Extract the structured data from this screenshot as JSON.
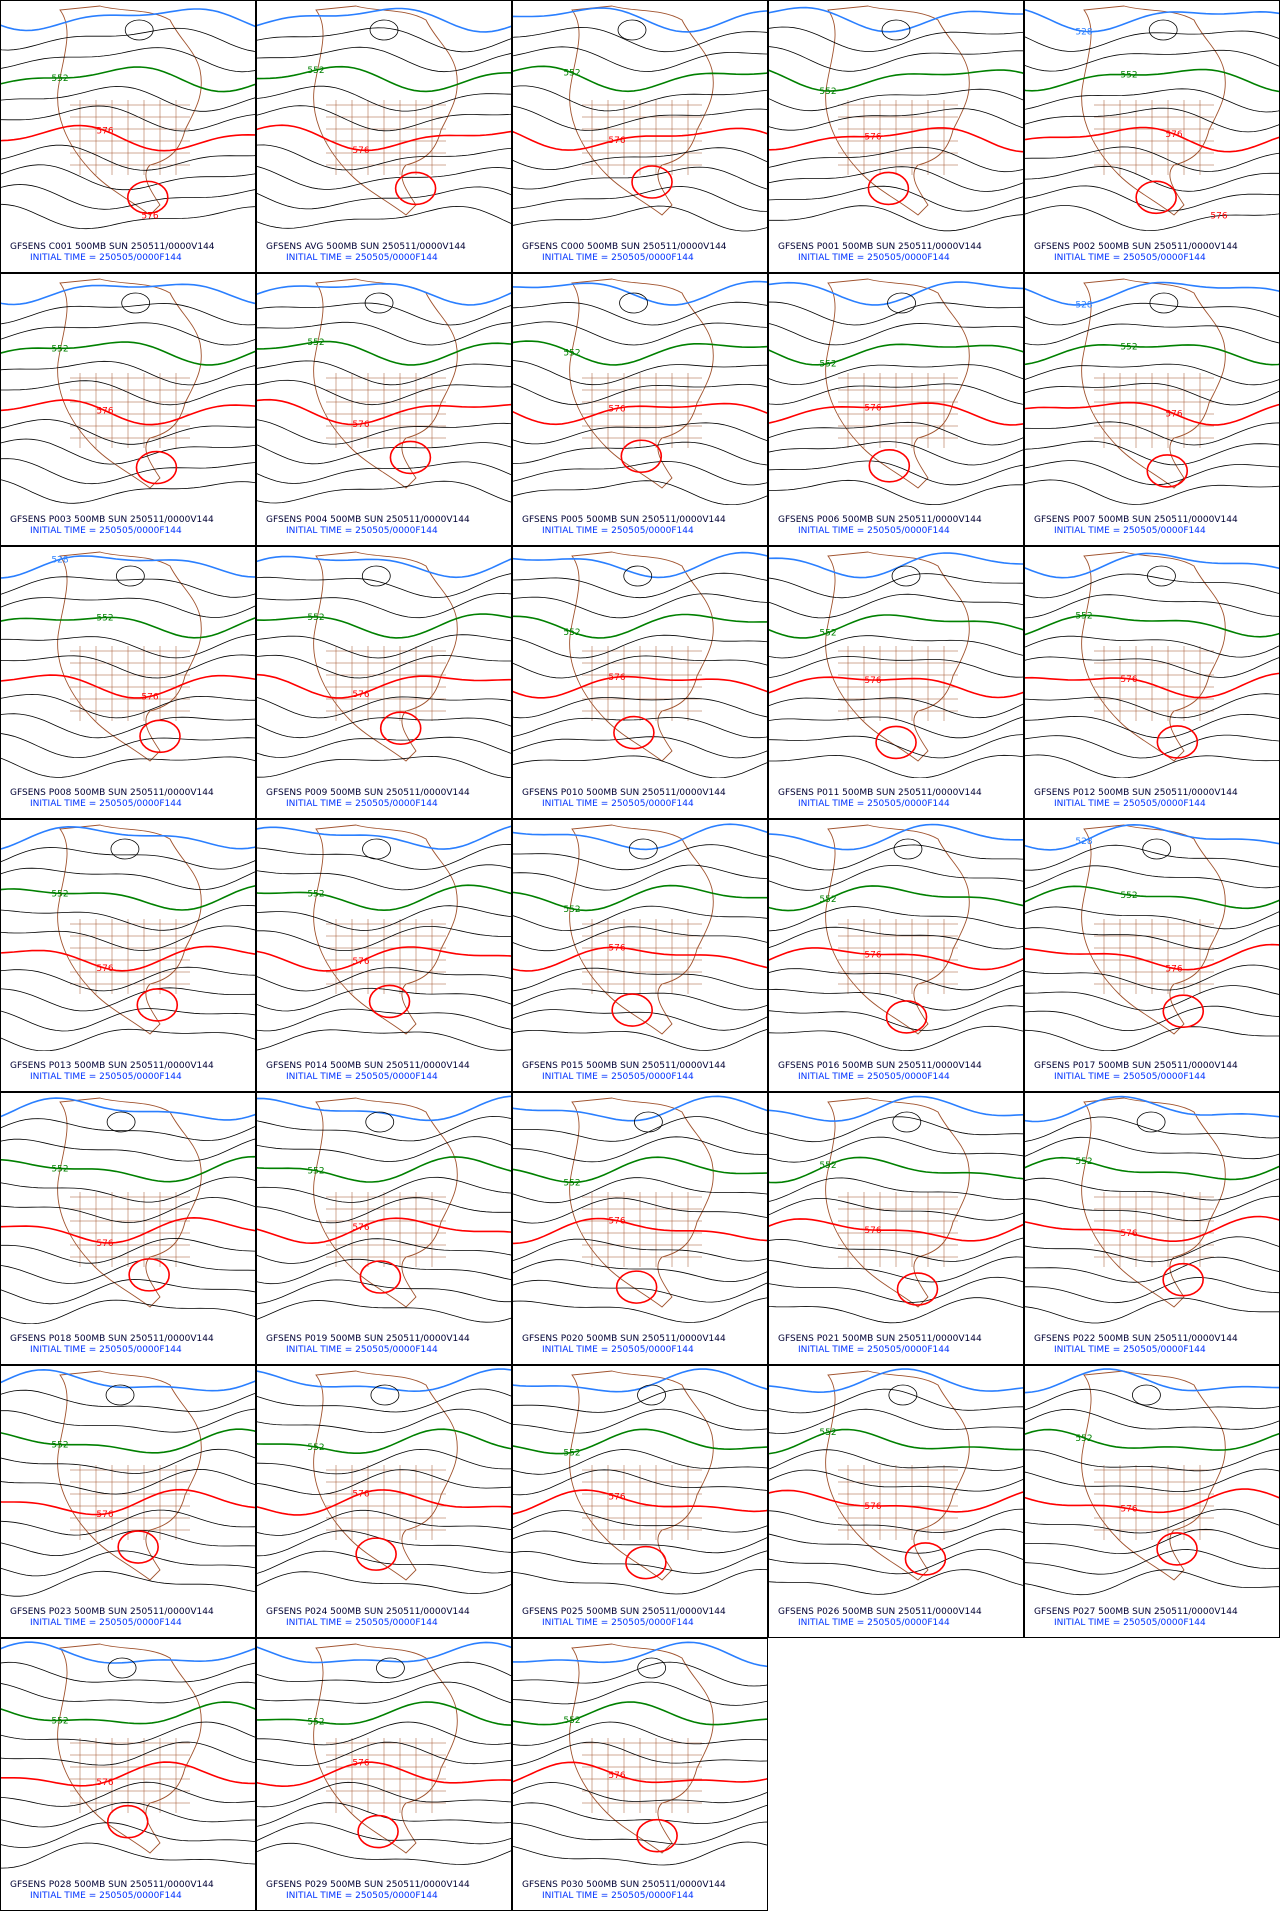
{
  "panels": [
    {
      "title": "GFSENS C001 500MB SUN 250511/0000V144",
      "subtitle": "INITIAL TIME = 250505/0000F144",
      "contour_labels": [
        "552",
        "576",
        "576"
      ]
    },
    {
      "title": "GFSENS AVG 500MB SUN 250511/0000V144",
      "subtitle": "INITIAL TIME = 250505/0000F144",
      "contour_labels": [
        "552",
        "576"
      ]
    },
    {
      "title": "GFSENS C000 500MB SUN 250511/0000V144",
      "subtitle": "INITIAL TIME = 250505/0000F144",
      "contour_labels": [
        "552",
        "576"
      ]
    },
    {
      "title": "GFSENS P001 500MB SUN 250511/0000V144",
      "subtitle": "INITIAL TIME = 250505/0000F144",
      "contour_labels": [
        "552",
        "576"
      ]
    },
    {
      "title": "GFSENS P002 500MB SUN 250511/0000V144",
      "subtitle": "INITIAL TIME = 250505/0000F144",
      "contour_labels": [
        "528",
        "552",
        "576",
        "576"
      ]
    },
    {
      "title": "GFSENS P003 500MB SUN 250511/0000V144",
      "subtitle": "INITIAL TIME = 250505/0000F144",
      "contour_labels": [
        "552",
        "576"
      ]
    },
    {
      "title": "GFSENS P004 500MB SUN 250511/0000V144",
      "subtitle": "INITIAL TIME = 250505/0000F144",
      "contour_labels": [
        "552",
        "576"
      ]
    },
    {
      "title": "GFSENS P005 500MB SUN 250511/0000V144",
      "subtitle": "INITIAL TIME = 250505/0000F144",
      "contour_labels": [
        "552",
        "576"
      ]
    },
    {
      "title": "GFSENS P006 500MB SUN 250511/0000V144",
      "subtitle": "INITIAL TIME = 250505/0000F144",
      "contour_labels": [
        "552",
        "576"
      ]
    },
    {
      "title": "GFSENS P007 500MB SUN 250511/0000V144",
      "subtitle": "INITIAL TIME = 250505/0000F144",
      "contour_labels": [
        "528",
        "552",
        "576"
      ]
    },
    {
      "title": "GFSENS P008 500MB SUN 250511/0000V144",
      "subtitle": "INITIAL TIME = 250505/0000F144",
      "contour_labels": [
        "528",
        "552",
        "576"
      ]
    },
    {
      "title": "GFSENS P009 500MB SUN 250511/0000V144",
      "subtitle": "INITIAL TIME = 250505/0000F144",
      "contour_labels": [
        "552",
        "576"
      ]
    },
    {
      "title": "GFSENS P010 500MB SUN 250511/0000V144",
      "subtitle": "INITIAL TIME = 250505/0000F144",
      "contour_labels": [
        "552",
        "576"
      ]
    },
    {
      "title": "GFSENS P011 500MB SUN 250511/0000V144",
      "subtitle": "INITIAL TIME = 250505/0000F144",
      "contour_labels": [
        "552",
        "576"
      ]
    },
    {
      "title": "GFSENS P012 500MB SUN 250511/0000V144",
      "subtitle": "INITIAL TIME = 250505/0000F144",
      "contour_labels": [
        "552",
        "576"
      ]
    },
    {
      "title": "GFSENS P013 500MB SUN 250511/0000V144",
      "subtitle": "INITIAL TIME = 250505/0000F144",
      "contour_labels": [
        "552",
        "576"
      ]
    },
    {
      "title": "GFSENS P014 500MB SUN 250511/0000V144",
      "subtitle": "INITIAL TIME = 250505/0000F144",
      "contour_labels": [
        "552",
        "576"
      ]
    },
    {
      "title": "GFSENS P015 500MB SUN 250511/0000V144",
      "subtitle": "INITIAL TIME = 250505/0000F144",
      "contour_labels": [
        "552",
        "576"
      ]
    },
    {
      "title": "GFSENS P016 500MB SUN 250511/0000V144",
      "subtitle": "INITIAL TIME = 250505/0000F144",
      "contour_labels": [
        "552",
        "576"
      ]
    },
    {
      "title": "GFSENS P017 500MB SUN 250511/0000V144",
      "subtitle": "INITIAL TIME = 250505/0000F144",
      "contour_labels": [
        "528",
        "552",
        "576"
      ]
    },
    {
      "title": "GFSENS P018 500MB SUN 250511/0000V144",
      "subtitle": "INITIAL TIME = 250505/0000F144",
      "contour_labels": [
        "552",
        "576"
      ]
    },
    {
      "title": "GFSENS P019 500MB SUN 250511/0000V144",
      "subtitle": "INITIAL TIME = 250505/0000F144",
      "contour_labels": [
        "552",
        "576"
      ]
    },
    {
      "title": "GFSENS P020 500MB SUN 250511/0000V144",
      "subtitle": "INITIAL TIME = 250505/0000F144",
      "contour_labels": [
        "552",
        "576"
      ]
    },
    {
      "title": "GFSENS P021 500MB SUN 250511/0000V144",
      "subtitle": "INITIAL TIME = 250505/0000F144",
      "contour_labels": [
        "552",
        "576"
      ]
    },
    {
      "title": "GFSENS P022 500MB SUN 250511/0000V144",
      "subtitle": "INITIAL TIME = 250505/0000F144",
      "contour_labels": [
        "552",
        "576"
      ]
    },
    {
      "title": "GFSENS P023 500MB SUN 250511/0000V144",
      "subtitle": "INITIAL TIME = 250505/0000F144",
      "contour_labels": [
        "552",
        "576"
      ]
    },
    {
      "title": "GFSENS P024 500MB SUN 250511/0000V144",
      "subtitle": "INITIAL TIME = 250505/0000F144",
      "contour_labels": [
        "552",
        "576"
      ]
    },
    {
      "title": "GFSENS P025 500MB SUN 250511/0000V144",
      "subtitle": "INITIAL TIME = 250505/0000F144",
      "contour_labels": [
        "552",
        "576"
      ]
    },
    {
      "title": "GFSENS P026 500MB SUN 250511/0000V144",
      "subtitle": "INITIAL TIME = 250505/0000F144",
      "contour_labels": [
        "552",
        "576"
      ]
    },
    {
      "title": "GFSENS P027 500MB SUN 250511/0000V144",
      "subtitle": "INITIAL TIME = 250505/0000F144",
      "contour_labels": [
        "552",
        "576"
      ]
    },
    {
      "title": "GFSENS P028 500MB SUN 250511/0000V144",
      "subtitle": "INITIAL TIME = 250505/0000F144",
      "contour_labels": [
        "552",
        "576"
      ]
    },
    {
      "title": "GFSENS P029 500MB SUN 250511/0000V144",
      "subtitle": "INITIAL TIME = 250505/0000F144",
      "contour_labels": [
        "552",
        "576"
      ]
    },
    {
      "title": "GFSENS P030 500MB SUN 250511/0000V144",
      "subtitle": "INITIAL TIME = 250505/0000F144",
      "contour_labels": [
        "552",
        "576"
      ]
    }
  ]
}
